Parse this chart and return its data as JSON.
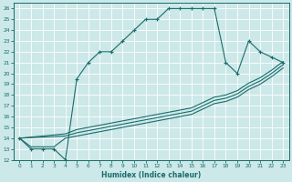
{
  "xlabel": "Humidex (Indice chaleur)",
  "bg_color": "#cce8e8",
  "grid_color": "#ffffff",
  "line_color": "#1a6b6b",
  "xlim": [
    -0.5,
    23.5
  ],
  "ylim": [
    12,
    26.5
  ],
  "xticks": [
    0,
    1,
    2,
    3,
    4,
    5,
    6,
    7,
    8,
    9,
    10,
    11,
    12,
    13,
    14,
    15,
    16,
    17,
    18,
    19,
    20,
    21,
    22,
    23
  ],
  "yticks": [
    12,
    13,
    14,
    15,
    16,
    17,
    18,
    19,
    20,
    21,
    22,
    23,
    24,
    25,
    26
  ],
  "main_x": [
    0,
    1,
    2,
    3,
    4,
    5,
    6,
    7,
    8,
    9,
    10,
    11,
    12,
    13,
    14,
    15,
    16,
    17,
    18,
    19,
    20,
    21,
    22,
    23
  ],
  "main_y": [
    14,
    13,
    13,
    13,
    12,
    19.5,
    21,
    22,
    22,
    23,
    24,
    25,
    25,
    26,
    26,
    26,
    26,
    26,
    21,
    20,
    23,
    22,
    21.5,
    21
  ],
  "diag1_x": [
    0,
    1,
    2,
    3,
    4,
    5,
    10,
    15,
    17,
    18,
    19,
    20,
    21,
    22,
    23
  ],
  "diag1_y": [
    14,
    13.2,
    13.2,
    13.2,
    14,
    14.2,
    15.2,
    16.2,
    17.2,
    17.4,
    17.8,
    18.5,
    19,
    19.7,
    20.5
  ],
  "diag2_x": [
    0,
    4,
    5,
    10,
    15,
    17,
    18,
    19,
    20,
    21,
    22,
    23
  ],
  "diag2_y": [
    14,
    14.2,
    14.5,
    15.5,
    16.5,
    17.5,
    17.7,
    18.1,
    18.8,
    19.3,
    20,
    20.8
  ],
  "diag3_x": [
    0,
    4,
    5,
    10,
    15,
    17,
    18,
    19,
    20,
    21,
    22,
    23
  ],
  "diag3_y": [
    14,
    14.4,
    14.8,
    15.8,
    16.8,
    17.8,
    18,
    18.4,
    19.1,
    19.6,
    20.3,
    21.1
  ]
}
